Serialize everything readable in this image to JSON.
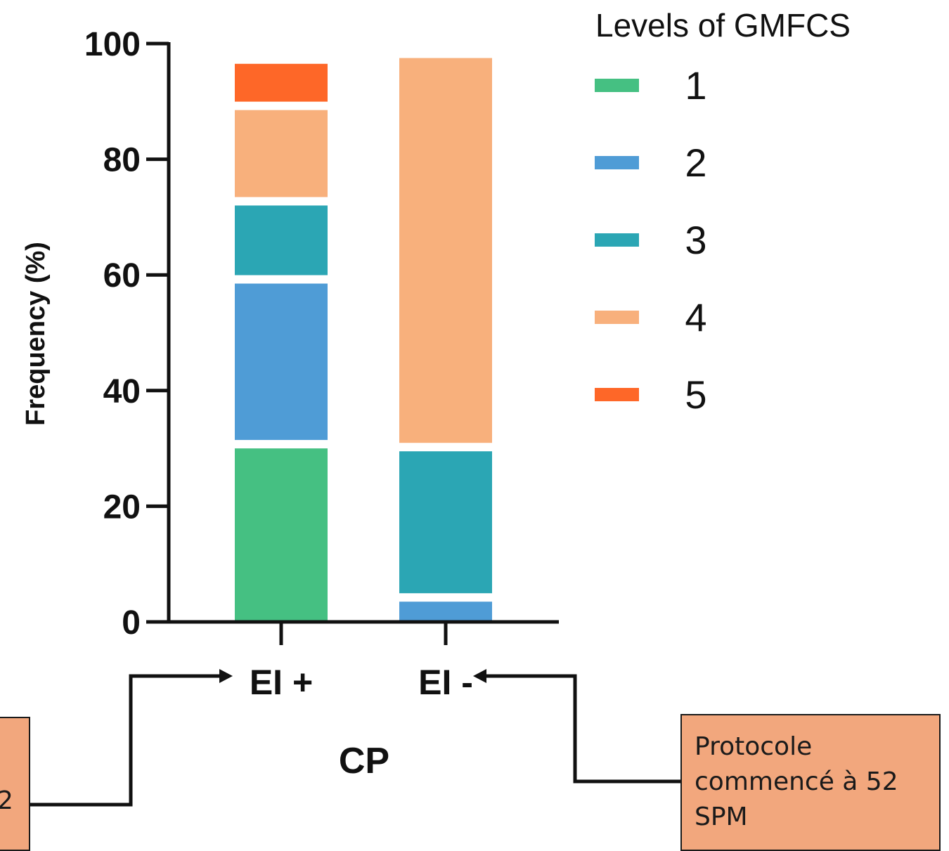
{
  "chart_data": {
    "type": "bar",
    "stacked": true,
    "xlabel": "CP",
    "ylabel": "Frequency (%)",
    "ylim": [
      0,
      100
    ],
    "yticks": [
      "0",
      "20",
      "40",
      "60",
      "80",
      "100"
    ],
    "categories": [
      "EI +",
      "EI -"
    ],
    "legend_title": "Levels of GMFCS",
    "legend_position": "top-right",
    "series": [
      {
        "name": "1",
        "color": "#45c082",
        "values": [
          30,
          0
        ]
      },
      {
        "name": "2",
        "color": "#4f9cd6",
        "values": [
          28.5,
          3.5
        ]
      },
      {
        "name": "3",
        "color": "#2ba6b4",
        "values": [
          13.5,
          26
        ]
      },
      {
        "name": "4",
        "color": "#f8b07c",
        "values": [
          16.5,
          68
        ]
      },
      {
        "name": "5",
        "color": "#fe6728",
        "values": [
          8,
          0
        ]
      }
    ]
  },
  "annotations": {
    "left_box_text": "2",
    "right_box_text": "Protocole commencé à 52 SPM"
  }
}
